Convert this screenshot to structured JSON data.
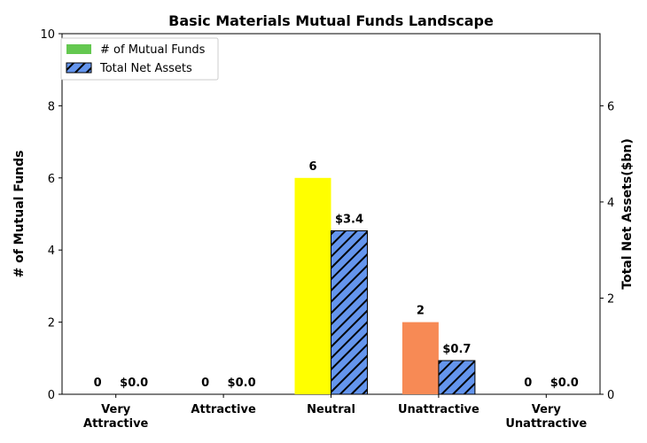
{
  "chart_data": {
    "type": "bar",
    "title": "Basic Materials Mutual Funds Landscape",
    "categories": [
      [
        "Very",
        "Attractive"
      ],
      [
        "Attractive"
      ],
      [
        "Neutral"
      ],
      [
        "Unattractive"
      ],
      [
        "Very",
        "Unattractive"
      ]
    ],
    "series": [
      {
        "name": "# of Mutual Funds",
        "axis": "left",
        "values": [
          0,
          0,
          6,
          2,
          0
        ],
        "value_labels": [
          "0",
          "0",
          "6",
          "2",
          "0"
        ],
        "colors": [
          "#64c850",
          "#64c850",
          "#ffff00",
          "#f78a55",
          "#64c850"
        ],
        "legend_color": "#64c850"
      },
      {
        "name": "Total Net Assets",
        "axis": "right",
        "values": [
          0.0,
          0.0,
          3.4,
          0.7,
          0.0
        ],
        "value_labels": [
          "$0.0",
          "$0.0",
          "$3.4",
          "$0.7",
          "$0.0"
        ],
        "color": "#6495ed",
        "hatch": "diagonal"
      }
    ],
    "ylabel": "# of Mutual Funds",
    "ylim": [
      0,
      10
    ],
    "yticks": [
      0,
      2,
      4,
      6,
      8,
      10
    ],
    "y2label": "Total Net Assets($bn)",
    "y2lim": [
      0,
      7.5
    ],
    "y2ticks": [
      0,
      2,
      4,
      6
    ],
    "grid": false,
    "legend": "top-left"
  }
}
